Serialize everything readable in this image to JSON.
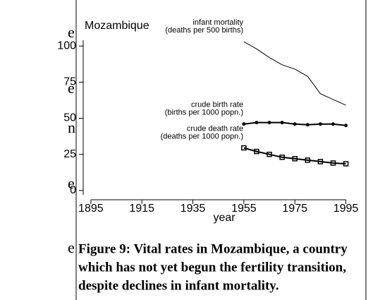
{
  "chart_data": {
    "type": "line",
    "title": "Mozambique",
    "xlabel": "year",
    "x": [
      1955,
      1960,
      1965,
      1970,
      1975,
      1980,
      1985,
      1990,
      1995
    ],
    "series": [
      {
        "name": "infant mortality",
        "note": "(deaths per 500 births)",
        "color": "#000000",
        "marker": "none",
        "values": [
          103,
          98,
          92,
          87,
          84,
          79,
          67,
          63,
          59
        ]
      },
      {
        "name": "crude birth rate",
        "note": "(births per 1000 popn.)",
        "color": "#000000",
        "marker": "circle",
        "values": [
          46,
          47,
          47,
          47,
          46,
          45.5,
          46,
          46,
          45
        ]
      },
      {
        "name": "crude death rate",
        "note": "(deaths per 1000 popn.)",
        "color": "#000000",
        "marker": "square",
        "values": [
          29.5,
          27,
          25,
          23,
          22,
          21,
          20,
          19,
          18.5
        ]
      }
    ],
    "xlim": [
      1892,
      1999
    ],
    "xticks": [
      1895,
      1915,
      1935,
      1955,
      1975,
      1995
    ],
    "ylim": [
      -3,
      104
    ],
    "yticks": [
      0,
      25,
      50,
      75,
      100
    ],
    "grid": false
  },
  "caption_lines": [
    "Figure 9: Vital rates in Mozambique, a country",
    "which has not yet begun the fertility transition,",
    "despite declines in infant mortality."
  ],
  "side_text": [
    "e",
    "e",
    "n",
    "e",
    "e"
  ]
}
